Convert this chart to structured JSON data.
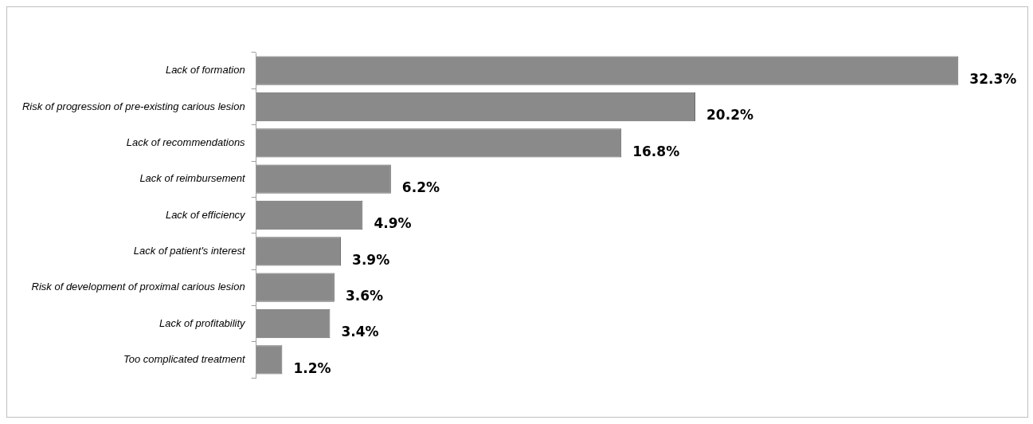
{
  "chart_data": {
    "type": "bar",
    "orientation": "horizontal",
    "categories": [
      "Lack of formation",
      "Risk of progression of pre-existing carious lesion",
      "Lack of recommendations",
      "Lack of reimbursement",
      "Lack of efficiency",
      "Lack of patient's interest",
      "Risk of development of proximal carious lesion",
      "Lack of profitability",
      "Too complicated treatment"
    ],
    "values": [
      32.3,
      20.2,
      16.8,
      6.2,
      4.9,
      3.9,
      3.6,
      3.4,
      1.2
    ],
    "value_labels": [
      "32.3%",
      "20.2%",
      "16.8%",
      "6.2%",
      "4.9%",
      "3.9%",
      "3.6%",
      "3.4%",
      "1.2%"
    ],
    "color": "#8a8a8a"
  }
}
